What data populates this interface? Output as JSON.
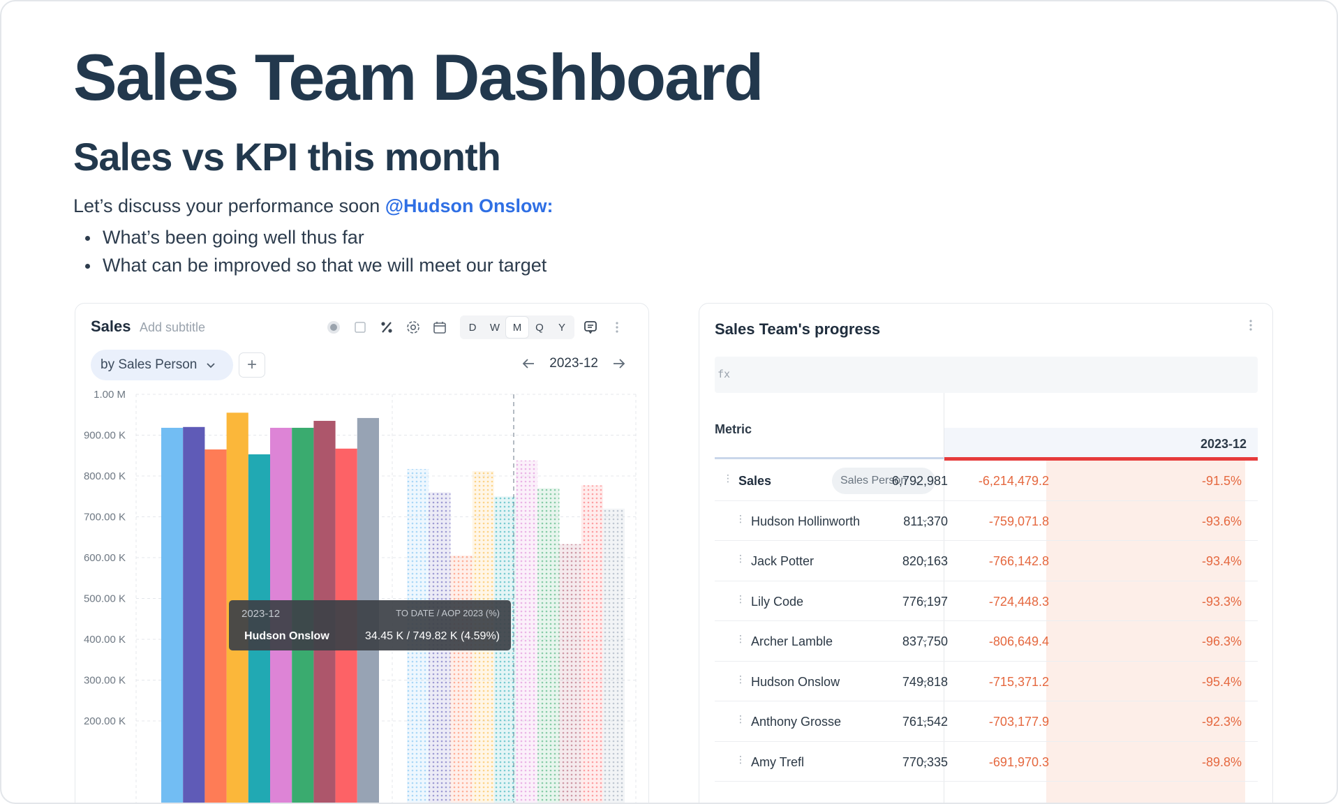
{
  "page": {
    "title": "Sales Team Dashboard",
    "section_title": "Sales vs KPI this month",
    "intro_text": "Let’s discuss your performance soon ",
    "mention": "@Hudson Onslow:",
    "bullets": [
      "What’s been going well thus far",
      "What can be improved so that we will meet our target"
    ]
  },
  "chart_card": {
    "title": "Sales",
    "subtitle_placeholder": "Add subtitle",
    "toolbar_icons": [
      "dot-toggle-icon",
      "checkbox-icon",
      "percent-icon",
      "settings-icon",
      "calendar-icon",
      "comment-icon",
      "more-icon"
    ],
    "periods": [
      "D",
      "W",
      "M",
      "Q",
      "Y"
    ],
    "active_period": "M",
    "group_by": "by Sales Person",
    "date": "2023-12",
    "tooltip": {
      "date": "2023-12",
      "header": "TO DATE / AOP 2023 (%)",
      "name": "Hudson Onslow",
      "value": "34.45 K / 749.82 K (4.59%)"
    }
  },
  "chart_data": {
    "type": "bar",
    "ylabel": "",
    "ylim": [
      200000,
      1000000
    ],
    "y_ticks": [
      "1.00 M",
      "900.00 K",
      "800.00 K",
      "700.00 K",
      "600.00 K",
      "500.00 K",
      "400.00 K",
      "300.00 K",
      "200.00 K"
    ],
    "series": [
      {
        "name": "solid",
        "values": [
          918000,
          920000,
          865000,
          955000,
          853000,
          918000,
          918000,
          935000,
          867000,
          942000
        ]
      },
      {
        "name": "hatched",
        "values": [
          817000,
          760000,
          605000,
          812000,
          749800,
          838000,
          770000,
          633000,
          777000,
          720000
        ]
      }
    ],
    "colors": [
      "#72bdf3",
      "#5f5bb7",
      "#fe7c56",
      "#fbb73a",
      "#21a9b3",
      "#dd84d6",
      "#3aab6f",
      "#ad566b",
      "#fd6266",
      "#97a3b4"
    ],
    "grid": true
  },
  "table_card": {
    "title": "Sales Team's progress",
    "formula_placeholder": "fx",
    "metric_header": "Metric",
    "period_header": "2023-12",
    "parent_row": {
      "name": "Sales",
      "pill": "Sales Person",
      "value": "6,792,981",
      "diff": "-6,214,479.2",
      "pct": "-91.5%"
    },
    "rows": [
      {
        "name": "Hudson Hollinworth",
        "value": "811,370",
        "diff": "-759,071.8",
        "pct": "-93.6%"
      },
      {
        "name": "Jack Potter",
        "value": "820,163",
        "diff": "-766,142.8",
        "pct": "-93.4%"
      },
      {
        "name": "Lily Code",
        "value": "776,197",
        "diff": "-724,448.3",
        "pct": "-93.3%"
      },
      {
        "name": "Archer Lamble",
        "value": "837,750",
        "diff": "-806,649.4",
        "pct": "-96.3%"
      },
      {
        "name": "Hudson Onslow",
        "value": "749,818",
        "diff": "-715,371.2",
        "pct": "-95.4%"
      },
      {
        "name": "Anthony Grosse",
        "value": "761,542",
        "diff": "-703,177.9",
        "pct": "-92.3%"
      },
      {
        "name": "Amy Trefl",
        "value": "770,335",
        "diff": "-691,970.3",
        "pct": "-89.8%"
      }
    ]
  }
}
